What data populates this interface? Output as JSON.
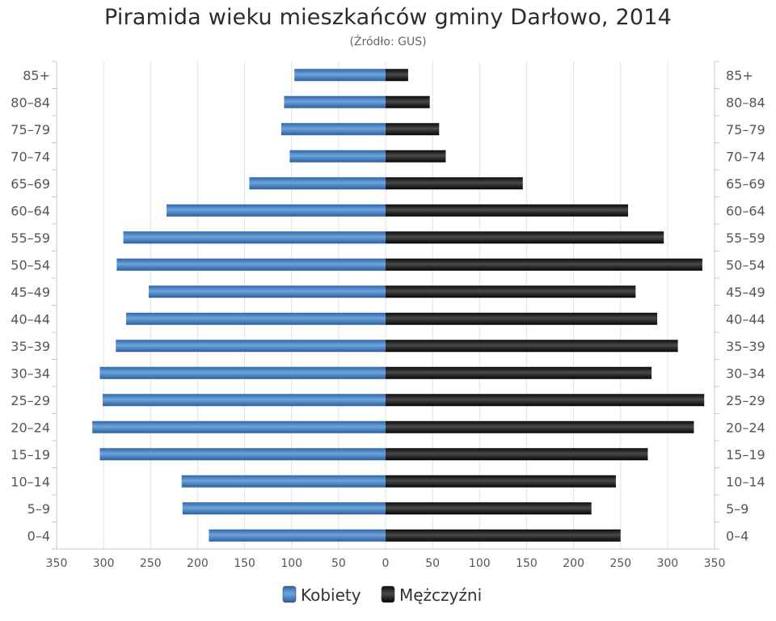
{
  "chart_data": {
    "type": "bar",
    "orientation": "horizontal",
    "title": "Piramida wieku mieszkańców gminy Darłowo, 2014",
    "subtitle": "(Źródło: GUS)",
    "categories": [
      "85+",
      "80–84",
      "75–79",
      "70–74",
      "65–69",
      "60–64",
      "55–59",
      "50–54",
      "45–49",
      "40–44",
      "35–39",
      "30–34",
      "25–29",
      "20–24",
      "15–19",
      "10–14",
      "5–9",
      "0–4"
    ],
    "series": [
      {
        "name": "Kobiety",
        "color": "#4a86c4",
        "side": "left",
        "values": [
          97,
          108,
          111,
          102,
          145,
          233,
          279,
          286,
          252,
          276,
          287,
          304,
          301,
          312,
          304,
          217,
          216,
          188
        ]
      },
      {
        "name": "Mężczyźni",
        "color": "#1c1c1c",
        "side": "right",
        "values": [
          24,
          47,
          57,
          64,
          146,
          258,
          296,
          337,
          266,
          289,
          311,
          283,
          339,
          328,
          279,
          245,
          219,
          250
        ]
      }
    ],
    "xlim": [
      -350,
      350
    ],
    "x_tick_values": [
      -350,
      -300,
      -250,
      -200,
      -150,
      -100,
      -50,
      0,
      50,
      100,
      150,
      200,
      250,
      300,
      350
    ],
    "x_tick_labels": [
      "350",
      "300",
      "250",
      "200",
      "150",
      "100",
      "50",
      "0",
      "50",
      "100",
      "150",
      "200",
      "250",
      "300",
      "350"
    ],
    "grid": true,
    "legend": "bottom-center"
  }
}
